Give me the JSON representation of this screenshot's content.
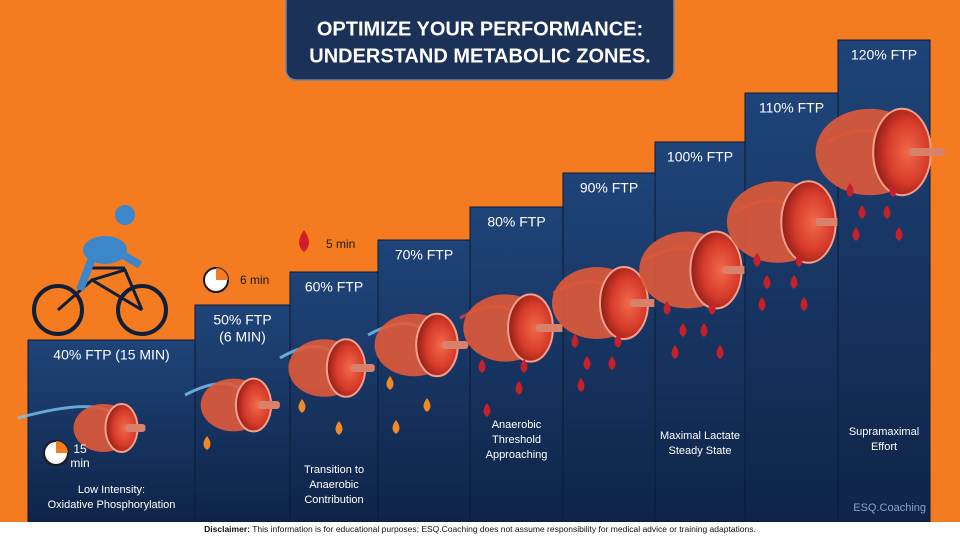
{
  "header": {
    "title_lines": [
      "OPTIMIZE YOUR PERFORMANCE:",
      "UNDERSTAND METABOLIC ZONES."
    ]
  },
  "zones": [
    {
      "label_lines": [
        "40% FTP (15 MIN)"
      ],
      "description_lines": [
        "Low Intensity:",
        "Oxidative Phosphorylation"
      ]
    },
    {
      "label_lines": [
        "50% FTP",
        "(6 MIN)"
      ]
    },
    {
      "label_lines": [
        "60% FTP"
      ],
      "description_lines": [
        "Transition to",
        "Anaerobic",
        "Contribution"
      ]
    },
    {
      "label_lines": [
        "70% FTP"
      ]
    },
    {
      "label_lines": [
        "80% FTP"
      ],
      "description_lines": [
        "Anaerobic",
        "Threshold",
        "Approaching"
      ]
    },
    {
      "label_lines": [
        "90% FTP"
      ]
    },
    {
      "label_lines": [
        "100% FTP"
      ],
      "description_lines": [
        "Maximal Lactate",
        "Steady State"
      ]
    },
    {
      "label_lines": [
        "110% FTP"
      ]
    },
    {
      "label_lines": [
        "120% FTP"
      ],
      "description_lines": [
        "Supramaximal",
        "Effort"
      ]
    }
  ],
  "timers": [
    {
      "lines": [
        "15",
        "min"
      ]
    },
    {
      "lines": [
        "6 min"
      ]
    },
    {
      "lines": [
        "5 min"
      ]
    }
  ],
  "watermark": "ESQ.Coaching",
  "disclaimer": {
    "label": "Disclaimer:",
    "text": "This information is for educational purposes; ESQ.Coaching does not assume responsibility for medical advice or training adaptations."
  }
}
